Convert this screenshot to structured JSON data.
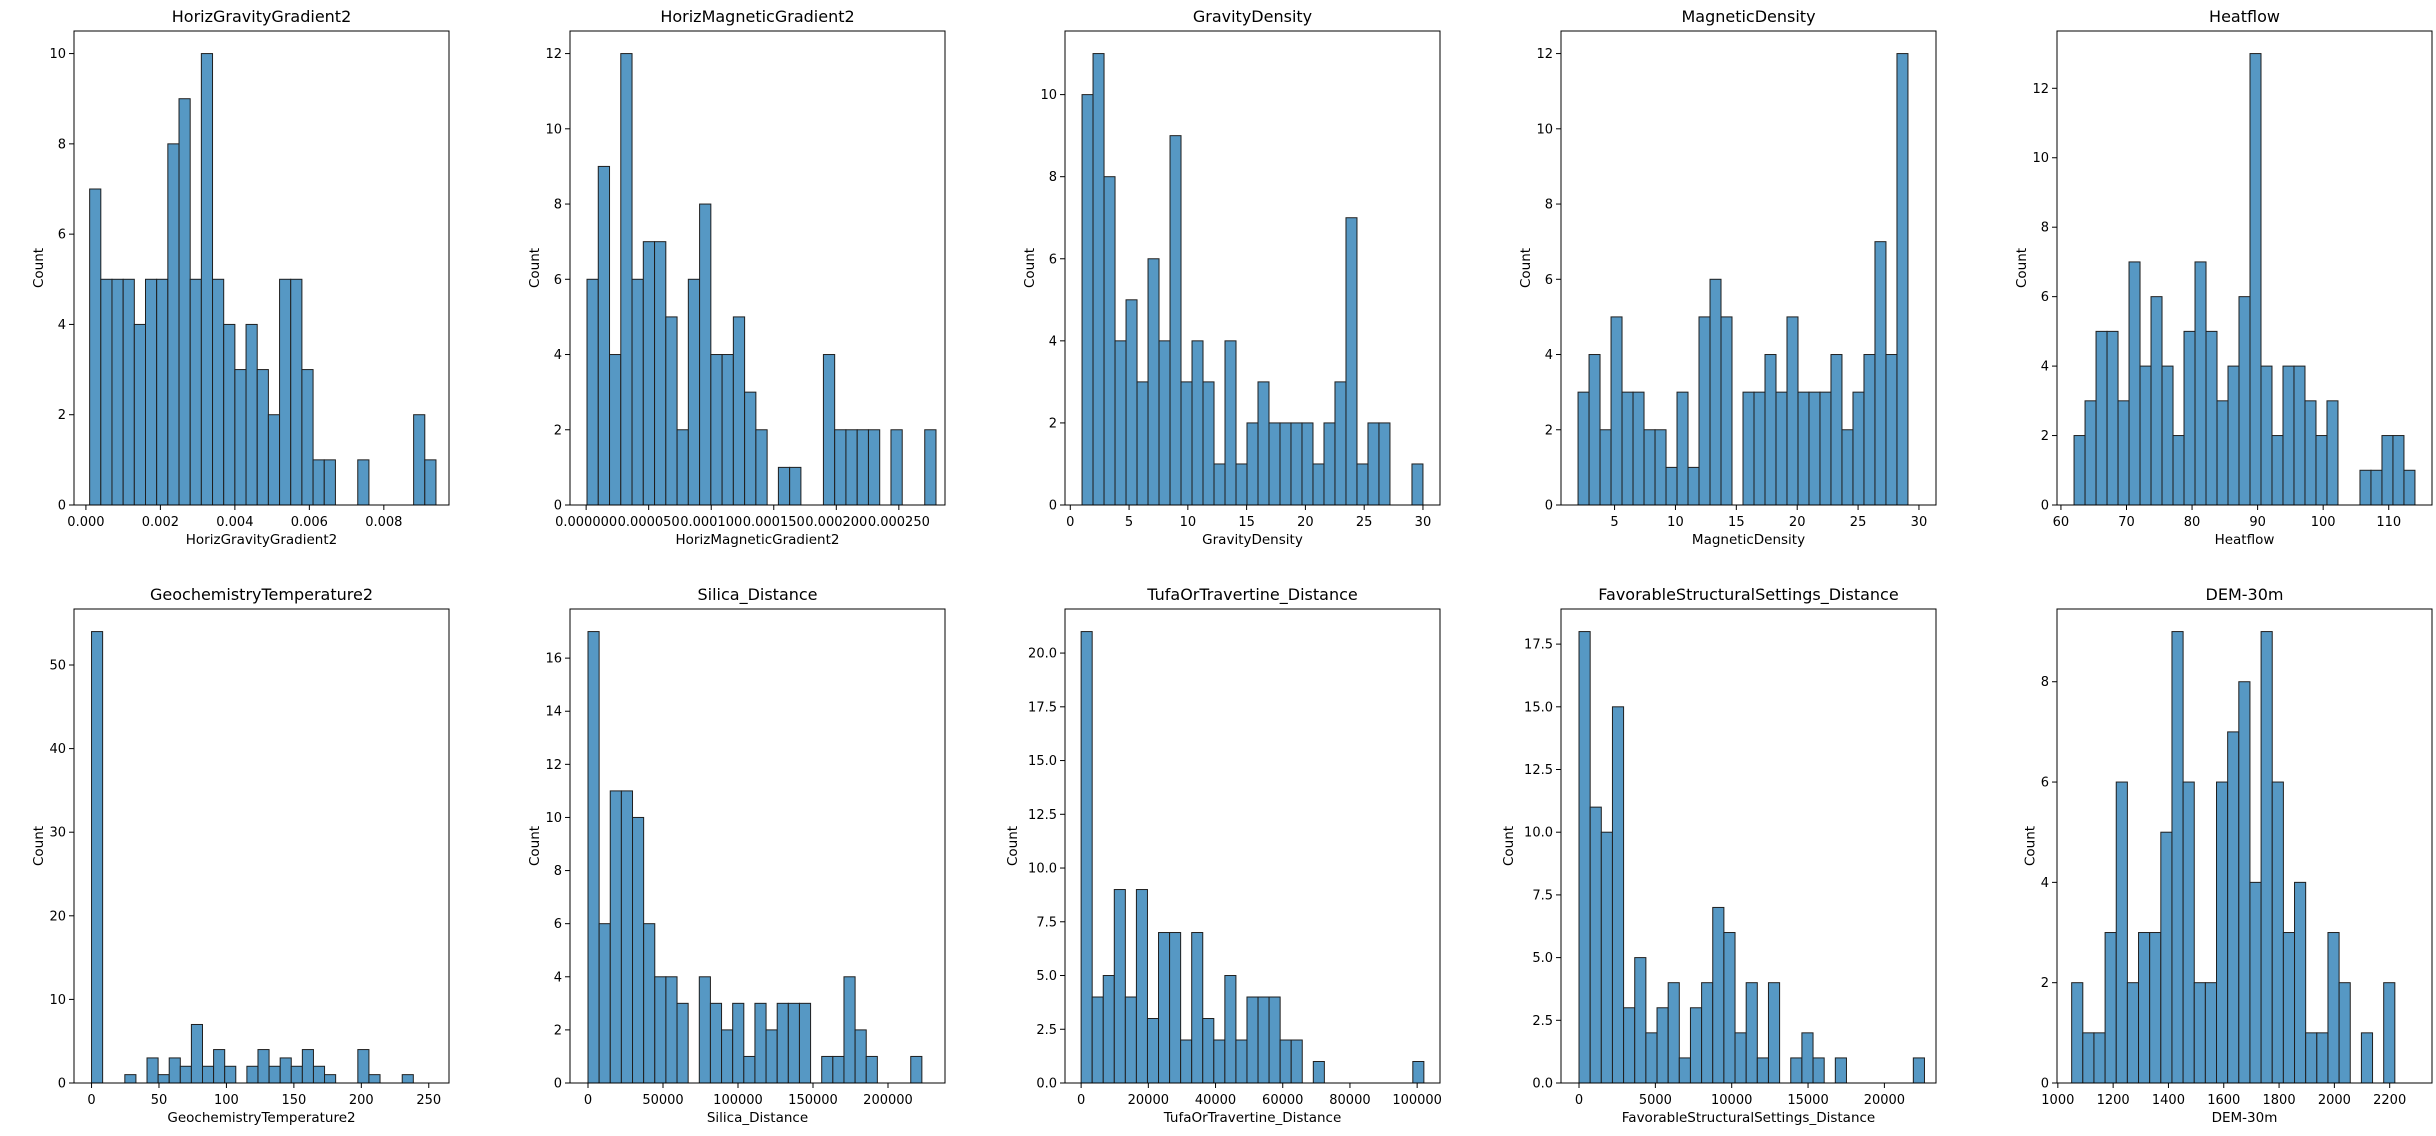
{
  "colors": {
    "bar_fill": "#5698c4",
    "bar_edge": "#1f1f1f",
    "axis": "#000000",
    "background": "#ffffff"
  },
  "chart_data": [
    {
      "type": "bar",
      "title": "HorizGravityGradient2",
      "xlabel": "HorizGravityGradient2",
      "ylabel": "Count",
      "xlim": [
        -0.00032,
        0.00975
      ],
      "ylim": [
        0,
        10.5
      ],
      "bin_edges": [
        0.0001,
        0.0004,
        0.0007,
        0.001,
        0.0013,
        0.0016,
        0.0019,
        0.0022,
        0.0025,
        0.0028,
        0.0031,
        0.0034,
        0.0037,
        0.004,
        0.0043,
        0.0046,
        0.0049,
        0.0052,
        0.0055,
        0.0058,
        0.0061,
        0.0064,
        0.0067,
        0.007,
        0.0073,
        0.0076,
        0.0079,
        0.0082,
        0.0085,
        0.0088,
        0.0091,
        0.0094
      ],
      "values": [
        7,
        5,
        5,
        5,
        4,
        5,
        5,
        8,
        9,
        5,
        10,
        5,
        4,
        3,
        4,
        3,
        2,
        5,
        5,
        3,
        1,
        1,
        0,
        0,
        1,
        0,
        0,
        0,
        0,
        2,
        1
      ],
      "xticks": [
        0.0,
        0.002,
        0.004,
        0.006,
        0.008
      ],
      "xtick_labels": [
        "0.000",
        "0.002",
        "0.004",
        "0.006",
        "0.008"
      ],
      "yticks": [
        0,
        2,
        4,
        6,
        8,
        10
      ],
      "ytick_labels": [
        "0",
        "2",
        "4",
        "6",
        "8",
        "10"
      ]
    },
    {
      "type": "bar",
      "title": "HorizMagneticGradient2",
      "xlabel": "HorizMagneticGradient2",
      "ylabel": "Count",
      "xlim": [
        -1.29e-05,
        0.0002869
      ],
      "ylim": [
        0,
        12.6
      ],
      "bin_edges": [
        7e-07,
        9.7e-06,
        1.87e-05,
        2.77e-05,
        3.67e-05,
        4.57e-05,
        5.47e-05,
        6.37e-05,
        7.27e-05,
        8.17e-05,
        9.07e-05,
        9.97e-05,
        0.0001087,
        0.0001177,
        0.0001267,
        0.0001357,
        0.0001447,
        0.0001537,
        0.0001627,
        0.0001717,
        0.0001807,
        0.0001897,
        0.0001987,
        0.0002077,
        0.0002167,
        0.0002257,
        0.0002347,
        0.0002437,
        0.0002527,
        0.0002617,
        0.0002707,
        0.0002797
      ],
      "values": [
        6,
        9,
        4,
        12,
        6,
        7,
        7,
        5,
        2,
        6,
        8,
        4,
        4,
        5,
        3,
        2,
        0,
        1,
        1,
        0,
        0,
        4,
        2,
        2,
        2,
        2,
        0,
        2,
        0,
        0,
        2
      ],
      "xticks": [
        0.0,
        5e-05,
        0.0001,
        0.00015,
        0.0002,
        0.00025
      ],
      "xtick_labels": [
        "0.000000",
        "0.000050",
        "0.000100",
        "0.000150",
        "0.000200",
        "0.000250"
      ],
      "yticks": [
        0,
        2,
        4,
        6,
        8,
        10,
        12
      ],
      "ytick_labels": [
        "0",
        "2",
        "4",
        "6",
        "8",
        "10",
        "12"
      ]
    },
    {
      "type": "bar",
      "title": "GravityDensity",
      "xlabel": "GravityDensity",
      "ylabel": "Count",
      "xlim": [
        -0.45,
        31.45
      ],
      "ylim": [
        0,
        11.55
      ],
      "bin_edges": [
        1,
        1.935,
        2.871,
        3.806,
        4.742,
        5.677,
        6.613,
        7.548,
        8.484,
        9.419,
        10.355,
        11.29,
        12.226,
        13.161,
        14.097,
        15.032,
        15.968,
        16.903,
        17.839,
        18.774,
        19.71,
        20.645,
        21.581,
        22.516,
        23.452,
        24.387,
        25.323,
        26.258,
        27.194,
        28.129,
        29.065,
        30
      ],
      "values": [
        10,
        11,
        8,
        4,
        5,
        3,
        6,
        4,
        9,
        3,
        4,
        3,
        1,
        4,
        1,
        2,
        3,
        2,
        2,
        2,
        2,
        1,
        2,
        3,
        7,
        1,
        2,
        2,
        0,
        0,
        1
      ],
      "xticks": [
        0,
        5,
        10,
        15,
        20,
        25,
        30
      ],
      "xtick_labels": [
        "0",
        "5",
        "10",
        "15",
        "20",
        "25",
        "30"
      ],
      "yticks": [
        0,
        2,
        4,
        6,
        8,
        10
      ],
      "ytick_labels": [
        "0",
        "2",
        "4",
        "6",
        "8",
        "10"
      ]
    },
    {
      "type": "bar",
      "title": "MagneticDensity",
      "xlabel": "MagneticDensity",
      "ylabel": "Count",
      "xlim": [
        0.6,
        31.4
      ],
      "ylim": [
        0,
        12.6
      ],
      "bin_edges": [
        2,
        2.903,
        3.806,
        4.71,
        5.613,
        6.516,
        7.419,
        8.323,
        9.226,
        10.129,
        11.032,
        11.935,
        12.839,
        13.742,
        14.645,
        15.548,
        16.452,
        17.355,
        18.258,
        19.161,
        20.065,
        20.968,
        21.871,
        22.774,
        23.677,
        24.581,
        25.484,
        26.387,
        27.29,
        28.194,
        29.097,
        30
      ],
      "values": [
        3,
        4,
        2,
        5,
        3,
        3,
        2,
        2,
        1,
        3,
        1,
        5,
        6,
        5,
        0,
        3,
        3,
        4,
        3,
        5,
        3,
        3,
        3,
        4,
        2,
        3,
        4,
        7,
        4,
        12,
        0
      ],
      "xticks": [
        5,
        10,
        15,
        20,
        25,
        30
      ],
      "xtick_labels": [
        "5",
        "10",
        "15",
        "20",
        "25",
        "30"
      ],
      "yticks": [
        0,
        2,
        4,
        6,
        8,
        10,
        12
      ],
      "ytick_labels": [
        "0",
        "2",
        "4",
        "6",
        "8",
        "10",
        "12"
      ]
    },
    {
      "type": "bar",
      "title": "Heatflow",
      "xlabel": "Heatflow",
      "ylabel": "Count",
      "xlim": [
        59.4,
        116.6
      ],
      "ylim": [
        0,
        13.65
      ],
      "bin_edges": [
        62,
        63.677,
        65.355,
        67.032,
        68.71,
        70.387,
        72.065,
        73.742,
        75.419,
        77.097,
        78.774,
        80.452,
        82.129,
        83.806,
        85.484,
        87.161,
        88.839,
        90.516,
        92.194,
        93.871,
        95.548,
        97.226,
        98.903,
        100.581,
        102.258,
        103.935,
        105.613,
        107.29,
        108.968,
        110.645,
        112.323,
        114
      ],
      "values": [
        2,
        3,
        5,
        5,
        3,
        7,
        4,
        6,
        4,
        2,
        5,
        7,
        5,
        3,
        4,
        6,
        13,
        4,
        2,
        4,
        4,
        3,
        2,
        3,
        0,
        0,
        1,
        1,
        2,
        2,
        1
      ],
      "xticks": [
        60,
        70,
        80,
        90,
        100,
        110
      ],
      "xtick_labels": [
        "60",
        "70",
        "80",
        "90",
        "100",
        "110"
      ],
      "yticks": [
        0,
        2,
        4,
        6,
        8,
        10,
        12
      ],
      "ytick_labels": [
        "0",
        "2",
        "4",
        "6",
        "8",
        "10",
        "12"
      ]
    },
    {
      "type": "bar",
      "title": "GeochemistryTemperature2",
      "xlabel": "GeochemistryTemperature2",
      "ylabel": "Count",
      "xlim": [
        -13,
        265
      ],
      "ylim": [
        0,
        56.7
      ],
      "bin_edges": [
        0,
        8.226,
        16.452,
        24.677,
        32.903,
        41.129,
        49.355,
        57.581,
        65.806,
        74.032,
        82.258,
        90.484,
        98.71,
        106.935,
        115.161,
        123.387,
        131.613,
        139.839,
        148.065,
        156.29,
        164.516,
        172.742,
        180.968,
        189.194,
        197.419,
        205.645,
        213.871,
        222.097,
        230.323,
        238.548,
        246.774,
        255
      ],
      "values": [
        54,
        0,
        0,
        1,
        0,
        3,
        1,
        3,
        2,
        7,
        2,
        4,
        2,
        0,
        2,
        4,
        2,
        3,
        2,
        4,
        2,
        1,
        0,
        0,
        4,
        1,
        0,
        0,
        1,
        0,
        0
      ],
      "xticks": [
        0,
        50,
        100,
        150,
        200,
        250
      ],
      "xtick_labels": [
        "0",
        "50",
        "100",
        "150",
        "200",
        "250"
      ],
      "yticks": [
        0,
        10,
        20,
        30,
        40,
        50
      ],
      "ytick_labels": [
        "0",
        "10",
        "20",
        "30",
        "40",
        "50"
      ]
    },
    {
      "type": "bar",
      "title": "Silica_Distance",
      "xlabel": "Silica_Distance",
      "ylabel": "Count",
      "xlim": [
        -12000,
        238000
      ],
      "ylim": [
        0,
        17.85
      ],
      "bin_edges": [
        0,
        7419,
        14839,
        22258,
        29677,
        37097,
        44516,
        51935,
        59355,
        66774,
        74194,
        81613,
        89032,
        96452,
        103871,
        111290,
        118710,
        126129,
        133548,
        140968,
        148387,
        155806,
        163226,
        170645,
        178065,
        185484,
        192903,
        200323,
        207742,
        215161,
        222581,
        230000
      ],
      "values": [
        17,
        6,
        11,
        11,
        10,
        6,
        4,
        4,
        3,
        0,
        4,
        3,
        2,
        3,
        1,
        3,
        2,
        3,
        3,
        3,
        0,
        1,
        1,
        4,
        2,
        1,
        0,
        0,
        0,
        1,
        0
      ],
      "xticks": [
        0,
        50000,
        100000,
        150000,
        200000
      ],
      "xtick_labels": [
        "0",
        "50000",
        "100000",
        "150000",
        "200000"
      ],
      "yticks": [
        0,
        2,
        4,
        6,
        8,
        10,
        12,
        14,
        16
      ],
      "ytick_labels": [
        "0",
        "2",
        "4",
        "6",
        "8",
        "10",
        "12",
        "14",
        "16"
      ]
    },
    {
      "type": "bar",
      "title": "TufaOrTravertine_Distance",
      "xlabel": "TufaOrTravertine_Distance",
      "ylabel": "Count",
      "xlim": [
        -4800,
        106800
      ],
      "ylim": [
        0,
        22.05
      ],
      "bin_edges": [
        0,
        3290,
        6581,
        9871,
        13161,
        16452,
        19742,
        23032,
        26323,
        29613,
        32903,
        36194,
        39484,
        42774,
        46065,
        49355,
        52645,
        55935,
        59226,
        62516,
        65806,
        69097,
        72387,
        75677,
        78968,
        82258,
        85548,
        88839,
        92129,
        95419,
        98710,
        102000
      ],
      "values": [
        21,
        4,
        5,
        9,
        4,
        9,
        3,
        7,
        7,
        2,
        7,
        3,
        2,
        5,
        2,
        4,
        4,
        4,
        2,
        2,
        0,
        1,
        0,
        0,
        0,
        0,
        0,
        0,
        0,
        0,
        1
      ],
      "xticks": [
        0,
        20000,
        40000,
        60000,
        80000,
        100000
      ],
      "xtick_labels": [
        "0",
        "20000",
        "40000",
        "60000",
        "80000",
        "100000"
      ],
      "yticks": [
        0,
        2.5,
        5.0,
        7.5,
        10.0,
        12.5,
        15.0,
        17.5,
        20.0
      ],
      "ytick_labels": [
        "0.0",
        "2.5",
        "5.0",
        "7.5",
        "10.0",
        "12.5",
        "15.0",
        "17.5",
        "20.0"
      ]
    },
    {
      "type": "bar",
      "title": "FavorableStructuralSettings_Distance",
      "xlabel": "FavorableStructuralSettings_Distance",
      "ylabel": "Count",
      "xlim": [
        -1180,
        23380
      ],
      "ylim": [
        0,
        18.9
      ],
      "bin_edges": [
        0,
        730,
        1460,
        2190,
        2919,
        3649,
        4379,
        5109,
        5839,
        6568,
        7298,
        8028,
        8758,
        9488,
        10218,
        10948,
        11677,
        12407,
        13137,
        13867,
        14597,
        15327,
        16057,
        16786,
        17516,
        18246,
        18976,
        19706,
        20436,
        21165,
        21895,
        22625
      ],
      "values": [
        18,
        11,
        10,
        15,
        3,
        5,
        2,
        3,
        4,
        1,
        3,
        4,
        7,
        6,
        2,
        4,
        1,
        4,
        0,
        1,
        2,
        1,
        0,
        1,
        0,
        0,
        0,
        0,
        0,
        0,
        1
      ],
      "xticks": [
        0,
        5000,
        10000,
        15000,
        20000
      ],
      "xtick_labels": [
        "0",
        "5000",
        "10000",
        "15000",
        "20000"
      ],
      "yticks": [
        0,
        2.5,
        5.0,
        7.5,
        10.0,
        12.5,
        15.0,
        17.5
      ],
      "ytick_labels": [
        "0.0",
        "2.5",
        "5.0",
        "7.5",
        "10.0",
        "12.5",
        "15.0",
        "17.5"
      ]
    },
    {
      "type": "bar",
      "title": "DEM-30m",
      "xlabel": "DEM-30m",
      "ylabel": "Count",
      "xlim": [
        997,
        2353
      ],
      "ylim": [
        0,
        9.45
      ],
      "bin_edges": [
        1050,
        1090.3,
        1130.6,
        1170.9,
        1211.2,
        1251.5,
        1291.8,
        1332.1,
        1372.4,
        1412.7,
        1453,
        1493.3,
        1533.5,
        1573.8,
        1614.1,
        1654.4,
        1694.7,
        1735,
        1775.3,
        1815.6,
        1855.9,
        1896.2,
        1936.5,
        1976.8,
        2017.1,
        2057.4,
        2097.7,
        2138,
        2178.3,
        2218.6,
        2258.9,
        2300
      ],
      "values": [
        2,
        1,
        1,
        3,
        6,
        2,
        3,
        3,
        5,
        9,
        6,
        2,
        2,
        6,
        7,
        8,
        4,
        9,
        6,
        3,
        4,
        1,
        1,
        3,
        2,
        0,
        1,
        0,
        2,
        0,
        0
      ],
      "xticks": [
        1000,
        1200,
        1400,
        1600,
        1800,
        2000,
        2200
      ],
      "xtick_labels": [
        "1000",
        "1200",
        "1400",
        "1600",
        "1800",
        "2000",
        "2200"
      ],
      "yticks": [
        0,
        2,
        4,
        6,
        8
      ],
      "ytick_labels": [
        "0",
        "2",
        "4",
        "6",
        "8"
      ]
    }
  ]
}
